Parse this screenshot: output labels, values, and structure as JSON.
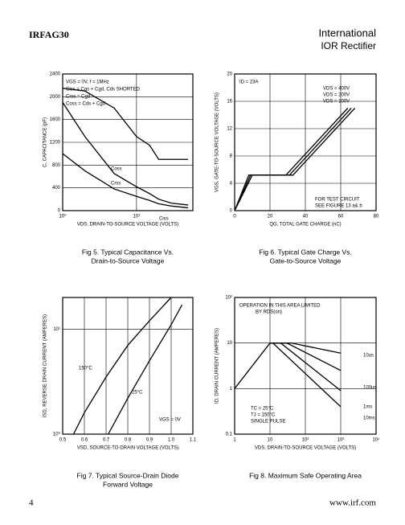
{
  "header": {
    "part": "IRFAG30",
    "brand_1": "International",
    "brand_2": "IOR Rectifier"
  },
  "footer": {
    "page": "4",
    "site": "www.irf.com"
  },
  "chart_data": [
    {
      "type": "line",
      "caption": [
        "Fig 5. Typical Capacitance Vs.",
        "Drain-to-Source Voltage"
      ],
      "x_label": "VDS, DRAIN-TO-SOURCE VOLTAGE (VOLTS)",
      "y_label": "C, CAPACITANCE (pF)",
      "annotations": [
        "VGS = 0V,  f = 1MHz",
        "Ciss = Cgs + Cgd,  Cds SHORTED",
        "Crss = Cgd",
        "Coss = Cds + Cgd"
      ],
      "x_log": true,
      "xlim": [
        1,
        58
      ],
      "xticks": [
        {
          "value": 1,
          "label": "10⁰"
        },
        {
          "value": 10,
          "label": "10¹"
        }
      ],
      "ylim": [
        0,
        2400
      ],
      "yticks": [
        0,
        400,
        800,
        1200,
        1600,
        2000,
        2400
      ],
      "grid": true,
      "x": [
        1,
        2,
        5,
        10,
        15,
        20,
        30,
        50
      ],
      "series": [
        {
          "name": "Ciss",
          "color": "#000000",
          "values": [
            2150,
            2100,
            1800,
            1300,
            1150,
            900,
            900,
            900
          ]
        },
        {
          "name": "Coss",
          "color": "#000000",
          "values": [
            1900,
            1300,
            650,
            420,
            300,
            200,
            130,
            100
          ]
        },
        {
          "name": "Crss",
          "color": "#000000",
          "values": [
            1000,
            700,
            380,
            250,
            180,
            120,
            80,
            50
          ]
        }
      ]
    },
    {
      "type": "line",
      "caption": [
        "Fig 6. Typical Gate Charge Vs.",
        "Gate-to-Source Voltage"
      ],
      "x_label": "QG, TOTAL GATE CHARGE (nC)",
      "y_label": "VGS, GATE-TO-SOURCE VOLTAGE (VOLTS)",
      "annotations": [
        "ID = 23A",
        "FOR TEST CIRCUIT",
        "SEE FIGURE 13 a& b"
      ],
      "xlim": [
        0,
        80
      ],
      "xticks": [
        0,
        20,
        40,
        60,
        80
      ],
      "ylim": [
        0,
        20
      ],
      "yticks": [
        0,
        4,
        8,
        12,
        16,
        20
      ],
      "grid": true,
      "series": [
        {
          "name": "VDS = 400V",
          "color": "#000000",
          "x": [
            0,
            10,
            33,
            68
          ],
          "values": [
            0,
            5.2,
            5.2,
            15
          ]
        },
        {
          "name": "VDS = 200V",
          "color": "#000000",
          "x": [
            0,
            9,
            31,
            66
          ],
          "values": [
            0,
            5.2,
            5.2,
            15
          ]
        },
        {
          "name": "VDS = 100V",
          "color": "#000000",
          "x": [
            0,
            8,
            29,
            64
          ],
          "values": [
            0,
            5.2,
            5.2,
            15
          ]
        }
      ]
    },
    {
      "type": "line",
      "caption": [
        "Fig 7. Typical Source-Drain Diode",
        "Forward Voltage"
      ],
      "x_label": "VSD, SOURCE-TO-DRAIN VOLTAGE (VOLTS)",
      "y_label": "ISD, REVERSE DRAIN CURRENT (AMPERES)",
      "annotations": [
        "VGS = 0V"
      ],
      "xlim": [
        0.5,
        1.1
      ],
      "xticks": [
        0.5,
        0.6,
        0.7,
        0.8,
        0.9,
        {
          "value": 1,
          "label": "1.0"
        },
        1.1
      ],
      "y_log": true,
      "ylim": [
        1,
        20
      ],
      "yticks": [
        {
          "value": 1,
          "label": "10⁰"
        },
        {
          "value": 10,
          "label": "10¹"
        }
      ],
      "grid": true,
      "series": [
        {
          "name": "150°C",
          "color": "#000000",
          "x": [
            0.55,
            0.6,
            0.7,
            0.8,
            0.9,
            1.0
          ],
          "values": [
            1,
            1.6,
            3.5,
            7,
            12,
            20
          ]
        },
        {
          "name": "25°C",
          "color": "#000000",
          "x": [
            0.71,
            0.8,
            0.9,
            1.0,
            1.05
          ],
          "values": [
            1,
            2.2,
            5,
            11,
            17
          ]
        }
      ]
    },
    {
      "type": "line",
      "caption": [
        "Fig 8. Maximum Safe Operating Area"
      ],
      "x_label": "VDS, DRAIN-TO-SOURCE VOLTAGE (VOLTS)",
      "y_label": "ID, DRAIN CURRENT (AMPERES)",
      "annotations": [
        "OPERATION IN THIS AREA LIMITED",
        "BY RDS(on)",
        "TC = 25°C",
        "TJ = 150°C",
        "SINGLE PULSE"
      ],
      "x_log": true,
      "xlim": [
        1,
        10000
      ],
      "xticks": [
        1,
        10,
        {
          "value": 100,
          "label": "10²"
        },
        {
          "value": 1000,
          "label": "10³"
        },
        {
          "value": 10000,
          "label": "10⁴"
        }
      ],
      "y_log": true,
      "ylim": [
        0.1,
        100
      ],
      "yticks": [
        0.1,
        1,
        10,
        {
          "value": 100,
          "label": "10²"
        }
      ],
      "grid": true,
      "series": [
        {
          "color": "#000000",
          "x": [
            1,
            10
          ],
          "values": [
            1,
            10
          ]
        },
        {
          "name": "10us",
          "color": "#000000",
          "x": [
            10,
            40,
            1000
          ],
          "values": [
            10,
            10,
            6
          ]
        },
        {
          "name": "100us",
          "color": "#000000",
          "x": [
            10,
            30,
            1000
          ],
          "values": [
            10,
            10,
            2.5
          ]
        },
        {
          "name": "1ms",
          "color": "#000000",
          "x": [
            10,
            20,
            1000
          ],
          "values": [
            10,
            10,
            0.9
          ]
        },
        {
          "name": "10ms",
          "color": "#000000",
          "x": [
            10,
            12,
            1000
          ],
          "values": [
            10,
            10,
            0.4
          ]
        }
      ]
    }
  ]
}
